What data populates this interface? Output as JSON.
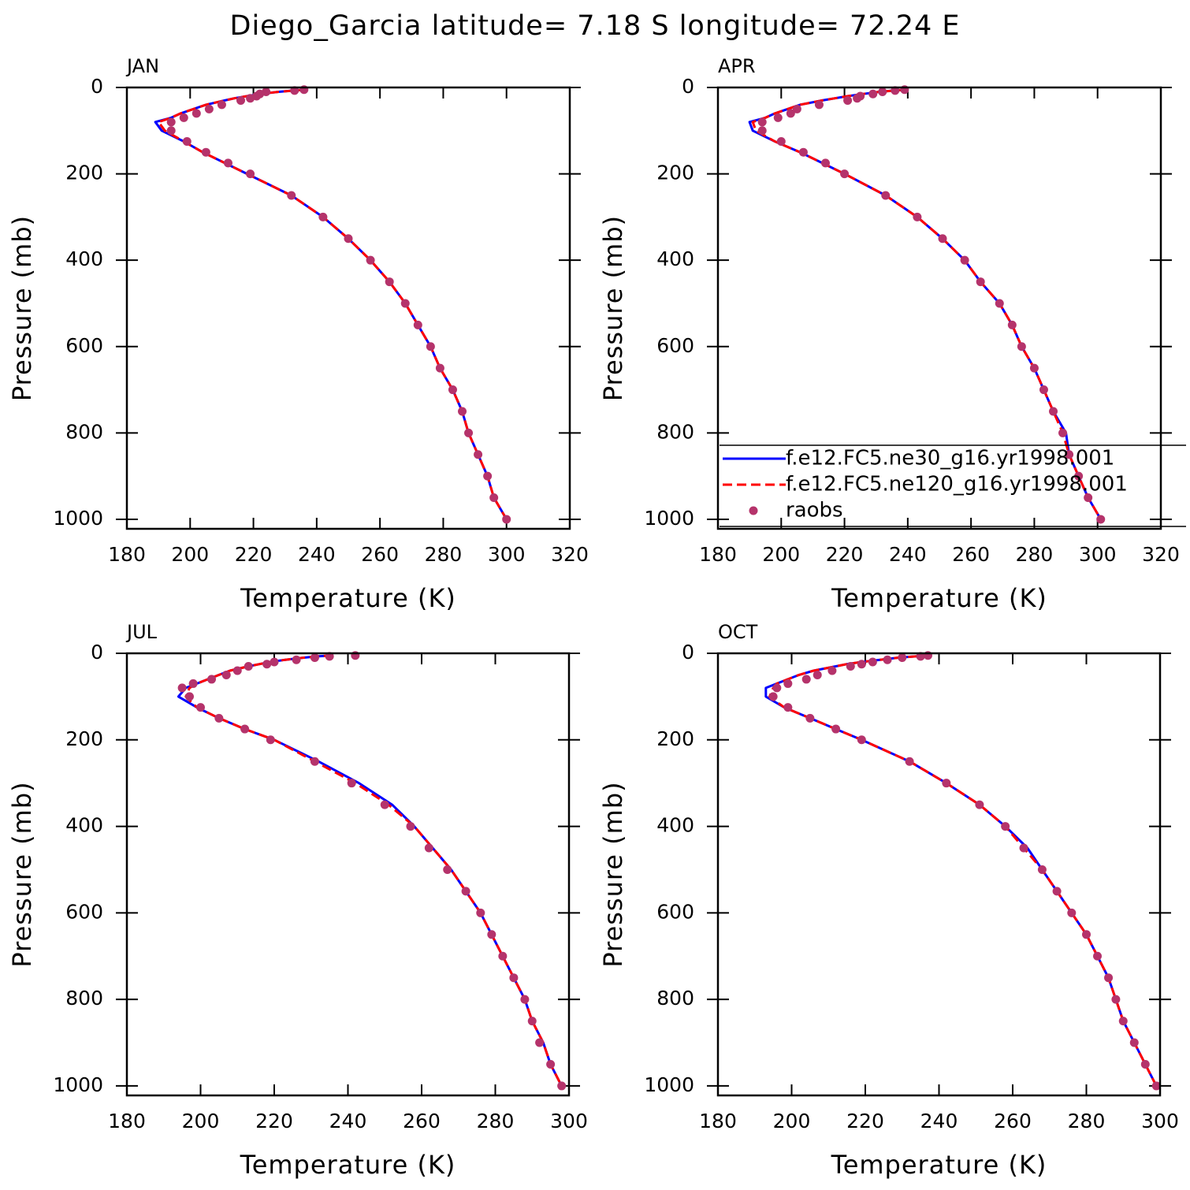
{
  "title": "Diego_Garcia  latitude= 7.18 S longitude= 72.24 E",
  "chart_data": [
    {
      "type": "line",
      "title": "JAN",
      "xlabel": "Temperature (K)",
      "ylabel": "Pressure (mb)",
      "xlim": [
        180,
        320
      ],
      "xticks": [
        180,
        200,
        220,
        240,
        260,
        280,
        300,
        320
      ],
      "ylim": [
        1022,
        0
      ],
      "yticks": [
        0,
        200,
        400,
        600,
        800,
        1000
      ],
      "y": [
        5,
        7,
        10,
        15,
        20,
        25,
        30,
        40,
        50,
        60,
        70,
        80,
        100,
        125,
        150,
        175,
        200,
        250,
        300,
        350,
        400,
        450,
        500,
        550,
        600,
        650,
        700,
        750,
        800,
        850,
        900,
        950,
        1000
      ],
      "series": [
        {
          "color": "#0000ff",
          "style": "solid",
          "values": [
            237,
            233,
            228,
            222,
            218,
            214,
            211,
            205,
            201,
            197,
            194,
            189,
            191,
            198,
            204,
            211,
            218,
            232,
            242,
            250,
            257,
            263,
            268,
            272,
            276,
            279,
            283,
            286,
            288,
            291,
            294,
            296,
            300
          ]
        },
        {
          "color": "#ff0000",
          "style": "dashed",
          "values": [
            237,
            233,
            228,
            222,
            218,
            214,
            211,
            205,
            201,
            197,
            194,
            190,
            192,
            198,
            204,
            211,
            218,
            232,
            242,
            250,
            257,
            263,
            268,
            272,
            276,
            279,
            283,
            286,
            288,
            291,
            294,
            296,
            300
          ]
        },
        {
          "color": "#b5336b",
          "style": "markers",
          "values": [
            236,
            233,
            224,
            222,
            221,
            219,
            216,
            210,
            206,
            202,
            198,
            194,
            194,
            199,
            205,
            212,
            219,
            232,
            242,
            250,
            257,
            263,
            268,
            272,
            276,
            279,
            283,
            286,
            288,
            291,
            294,
            296,
            300
          ]
        }
      ]
    },
    {
      "type": "line",
      "title": "APR",
      "xlabel": "Temperature (K)",
      "ylabel": "Pressure (mb)",
      "xlim": [
        180,
        320
      ],
      "xticks": [
        180,
        200,
        220,
        240,
        260,
        280,
        300,
        320
      ],
      "ylim": [
        1022,
        0
      ],
      "yticks": [
        0,
        200,
        400,
        600,
        800,
        1000
      ],
      "legend": "lower right",
      "y": [
        5,
        7,
        10,
        15,
        20,
        25,
        30,
        40,
        50,
        60,
        70,
        80,
        100,
        125,
        150,
        175,
        200,
        250,
        300,
        350,
        400,
        450,
        500,
        550,
        600,
        650,
        700,
        750,
        800,
        850,
        900,
        950,
        1000
      ],
      "series": [
        {
          "name": "f.e12.FC5.ne30_g16.yr1998.001",
          "color": "#0000ff",
          "style": "solid",
          "values": [
            240,
            236,
            231,
            226,
            221,
            217,
            213,
            206,
            202,
            198,
            195,
            190,
            191,
            198,
            206,
            213,
            220,
            233,
            243,
            251,
            258,
            263,
            269,
            273,
            276,
            280,
            283,
            286,
            290,
            291,
            294,
            297,
            301
          ]
        },
        {
          "name": "f.e12.FC5.ne120_g16.yr1998.001",
          "color": "#ff0000",
          "style": "dashed",
          "values": [
            240,
            236,
            231,
            226,
            221,
            217,
            213,
            206,
            202,
            198,
            195,
            191,
            192,
            198,
            206,
            213,
            220,
            233,
            243,
            251,
            258,
            263,
            269,
            273,
            276,
            280,
            283,
            286,
            289,
            291,
            294,
            297,
            301
          ]
        },
        {
          "name": "raobs",
          "color": "#b5336b",
          "style": "markers",
          "values": [
            239,
            236,
            232,
            229,
            225,
            224,
            221,
            212,
            205,
            203,
            199,
            194,
            194,
            200,
            207,
            214,
            220,
            233,
            243,
            251,
            258,
            263,
            269,
            273,
            276,
            280,
            283,
            286,
            289,
            291,
            294,
            297,
            301
          ]
        }
      ]
    },
    {
      "type": "line",
      "title": "JUL",
      "xlabel": "Temperature (K)",
      "ylabel": "Pressure (mb)",
      "xlim": [
        180,
        300
      ],
      "xticks": [
        180,
        200,
        220,
        240,
        260,
        280,
        300
      ],
      "ylim": [
        1022,
        0
      ],
      "yticks": [
        0,
        200,
        400,
        600,
        800,
        1000
      ],
      "y": [
        5,
        7,
        10,
        15,
        20,
        25,
        30,
        40,
        50,
        60,
        70,
        80,
        100,
        125,
        150,
        175,
        200,
        250,
        300,
        350,
        400,
        450,
        500,
        550,
        600,
        650,
        700,
        750,
        800,
        850,
        900,
        950,
        1000
      ],
      "series": [
        {
          "color": "#0000ff",
          "style": "solid",
          "values": [
            236,
            232,
            228,
            223,
            219,
            216,
            213,
            208,
            205,
            202,
            199,
            196,
            194,
            199,
            205,
            212,
            220,
            232,
            243,
            252,
            258,
            263,
            268,
            272,
            276,
            279,
            282,
            285,
            288,
            290,
            293,
            295,
            298
          ]
        },
        {
          "color": "#ff0000",
          "style": "dashed",
          "values": [
            236,
            232,
            228,
            223,
            219,
            216,
            213,
            208,
            205,
            202,
            199,
            197,
            196,
            199,
            205,
            212,
            220,
            231,
            242,
            251,
            258,
            263,
            268,
            272,
            276,
            279,
            282,
            285,
            288,
            290,
            293,
            295,
            298
          ]
        },
        {
          "color": "#b5336b",
          "style": "markers",
          "values": [
            242,
            235,
            231,
            226,
            220,
            218,
            213,
            210,
            207,
            203,
            198,
            195,
            197,
            200,
            205,
            212,
            219,
            231,
            241,
            250,
            257,
            262,
            267,
            272,
            276,
            279,
            282,
            285,
            288,
            290,
            292,
            295,
            298
          ]
        }
      ]
    },
    {
      "type": "line",
      "title": "OCT",
      "xlabel": "Temperature (K)",
      "ylabel": "Pressure (mb)",
      "xlim": [
        180,
        300
      ],
      "xticks": [
        180,
        200,
        220,
        240,
        260,
        280,
        300
      ],
      "ylim": [
        1022,
        0
      ],
      "yticks": [
        0,
        200,
        400,
        600,
        800,
        1000
      ],
      "y": [
        5,
        7,
        10,
        15,
        20,
        25,
        30,
        40,
        50,
        60,
        70,
        80,
        100,
        125,
        150,
        175,
        200,
        250,
        300,
        350,
        400,
        450,
        500,
        550,
        600,
        650,
        700,
        750,
        800,
        850,
        900,
        950,
        1000
      ],
      "series": [
        {
          "color": "#0000ff",
          "style": "solid",
          "values": [
            238,
            234,
            229,
            224,
            219,
            215,
            212,
            206,
            202,
            199,
            196,
            193,
            193,
            198,
            205,
            212,
            219,
            232,
            242,
            251,
            258,
            264,
            268,
            272,
            276,
            280,
            283,
            286,
            288,
            290,
            293,
            296,
            299
          ]
        },
        {
          "color": "#ff0000",
          "style": "dashed",
          "values": [
            238,
            234,
            229,
            224,
            219,
            215,
            212,
            206,
            202,
            199,
            196,
            195,
            194,
            198,
            205,
            212,
            219,
            232,
            242,
            251,
            258,
            263,
            268,
            272,
            276,
            280,
            283,
            286,
            288,
            290,
            293,
            296,
            299
          ]
        },
        {
          "color": "#b5336b",
          "style": "markers",
          "values": [
            237,
            235,
            230,
            226,
            222,
            219,
            216,
            211,
            207,
            204,
            199,
            196,
            195,
            199,
            205,
            212,
            219,
            232,
            242,
            251,
            258,
            263,
            268,
            272,
            276,
            280,
            283,
            286,
            288,
            290,
            293,
            296,
            299
          ]
        }
      ]
    }
  ]
}
